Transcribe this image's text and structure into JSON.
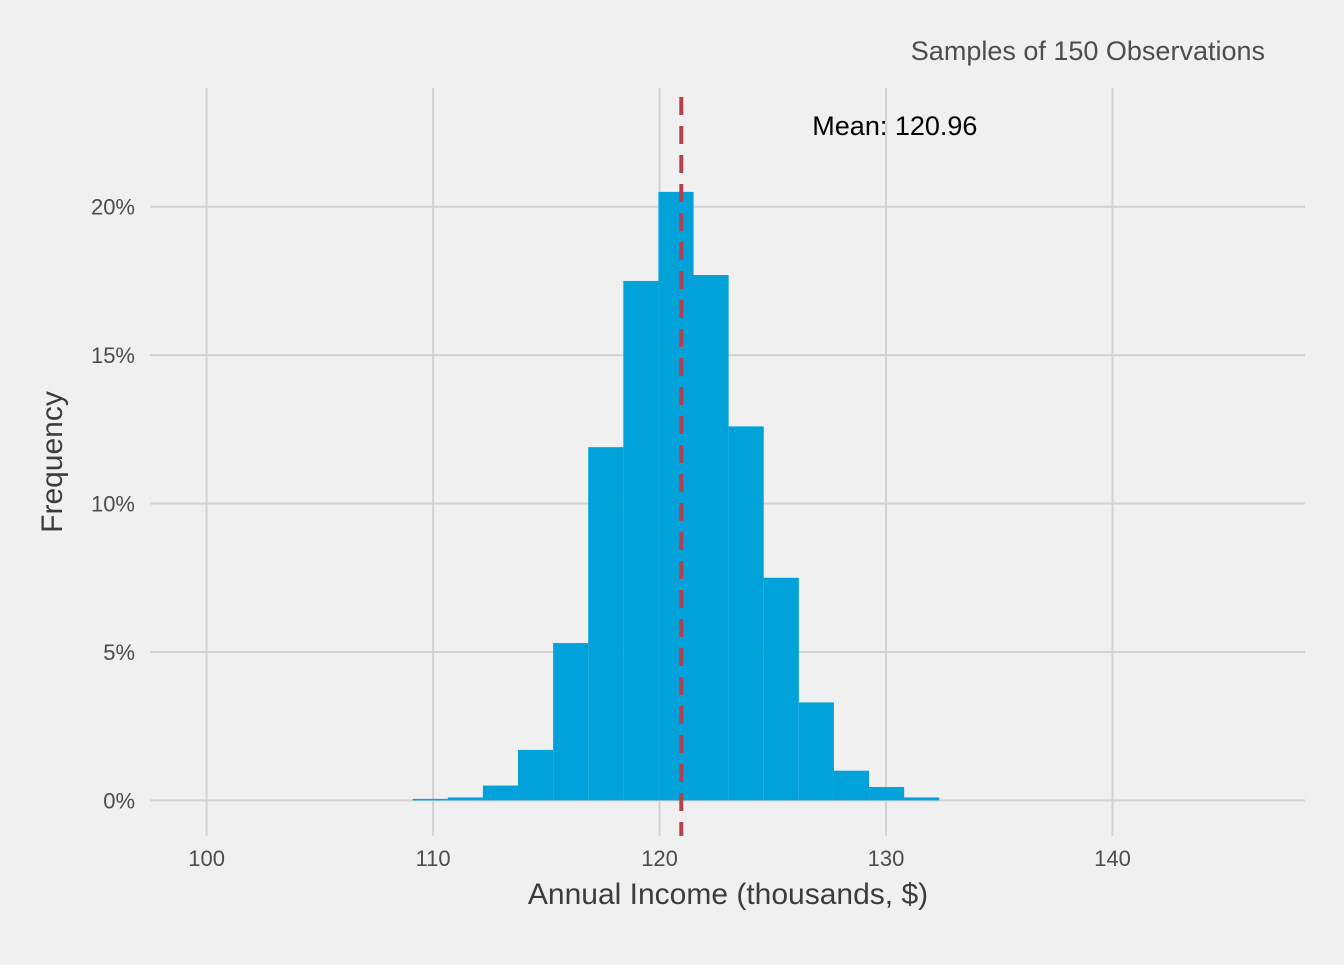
{
  "chart_data": {
    "type": "bar",
    "title": "Samples of 150 Observations",
    "xlabel": "Annual Income (thousands, $)",
    "ylabel": "Frequency",
    "xlim": [
      97.5,
      148.5
    ],
    "ylim": [
      -0.012,
      0.24
    ],
    "x_ticks": [
      100,
      110,
      120,
      130,
      140
    ],
    "x_tick_labels": [
      "100",
      "110",
      "120",
      "130",
      "140"
    ],
    "y_ticks": [
      0,
      0.05,
      0.1,
      0.15,
      0.2
    ],
    "y_tick_labels": [
      "0%",
      "5%",
      "10%",
      "15%",
      "20%"
    ],
    "bin_width": 1.55,
    "bins": [
      {
        "x0": 109.1,
        "value": 0.0005
      },
      {
        "x0": 110.65,
        "value": 0.001
      },
      {
        "x0": 112.2,
        "value": 0.005
      },
      {
        "x0": 113.75,
        "value": 0.017
      },
      {
        "x0": 115.3,
        "value": 0.053
      },
      {
        "x0": 116.85,
        "value": 0.119
      },
      {
        "x0": 118.4,
        "value": 0.175
      },
      {
        "x0": 119.95,
        "value": 0.205
      },
      {
        "x0": 121.5,
        "value": 0.177
      },
      {
        "x0": 123.05,
        "value": 0.126
      },
      {
        "x0": 124.6,
        "value": 0.075
      },
      {
        "x0": 126.15,
        "value": 0.033
      },
      {
        "x0": 127.7,
        "value": 0.01
      },
      {
        "x0": 129.25,
        "value": 0.0045
      },
      {
        "x0": 130.8,
        "value": 0.001
      }
    ],
    "mean": {
      "value": 120.96,
      "label": "Mean: 120.96",
      "color": "#b5404f"
    },
    "colors": {
      "background": "#f0f0f0",
      "bar": "#00a2d9",
      "grid": "#d2d2d2",
      "tick_text": "#4d4d4d",
      "axis_title": "#3c3c3c"
    },
    "grid": true
  }
}
